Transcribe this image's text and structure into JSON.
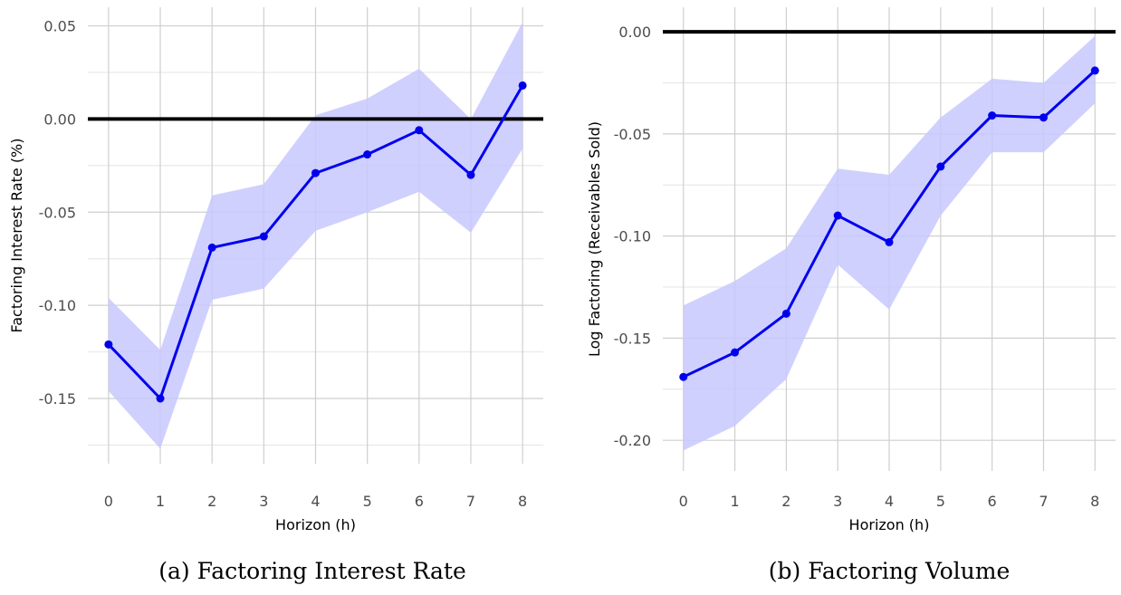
{
  "chart_data": [
    {
      "type": "line",
      "caption": "(a) Factoring Interest Rate",
      "xlabel": "Horizon (h)",
      "ylabel": "Factoring Interest Rate (%)",
      "x": [
        0,
        1,
        2,
        3,
        4,
        5,
        6,
        7,
        8
      ],
      "xlim": [
        -0.4,
        8.4
      ],
      "ylim": [
        -0.185,
        0.06
      ],
      "yticks": [
        0.05,
        0.0,
        -0.05,
        -0.1,
        -0.15
      ],
      "ytick_labels": [
        "0.05",
        "0.00",
        "-0.05",
        "-0.10",
        "-0.15"
      ],
      "reference_line": 0.0,
      "grid": true,
      "series": [
        {
          "values": [
            -0.121,
            -0.15,
            -0.069,
            -0.063,
            -0.029,
            -0.019,
            -0.006,
            -0.03,
            0.018
          ],
          "lower": [
            -0.146,
            -0.177,
            -0.097,
            -0.091,
            -0.06,
            -0.05,
            -0.039,
            -0.061,
            -0.016
          ],
          "upper": [
            -0.096,
            -0.124,
            -0.041,
            -0.035,
            0.002,
            0.011,
            0.027,
            0.0,
            0.052
          ],
          "color": "#0000ee",
          "band_color": "#c8c8ff"
        }
      ]
    },
    {
      "type": "line",
      "caption": "(b) Factoring Volume",
      "xlabel": "Horizon (h)",
      "ylabel": "Log Factoring (Receivables Sold)",
      "x": [
        0,
        1,
        2,
        3,
        4,
        5,
        6,
        7,
        8
      ],
      "xlim": [
        -0.4,
        8.4
      ],
      "ylim": [
        -0.215,
        0.012
      ],
      "yticks": [
        0.0,
        -0.05,
        -0.1,
        -0.15,
        -0.2
      ],
      "ytick_labels": [
        "0.00",
        "-0.05",
        "-0.10",
        "-0.15",
        "-0.20"
      ],
      "reference_line": 0.0,
      "grid": true,
      "series": [
        {
          "values": [
            -0.169,
            -0.157,
            -0.138,
            -0.09,
            -0.103,
            -0.066,
            -0.041,
            -0.042,
            -0.019
          ],
          "lower": [
            -0.205,
            -0.193,
            -0.17,
            -0.114,
            -0.136,
            -0.09,
            -0.059,
            -0.059,
            -0.035
          ],
          "upper": [
            -0.134,
            -0.122,
            -0.106,
            -0.067,
            -0.07,
            -0.042,
            -0.023,
            -0.025,
            -0.002
          ],
          "color": "#0000ee",
          "band_color": "#c8c8ff"
        }
      ]
    }
  ]
}
